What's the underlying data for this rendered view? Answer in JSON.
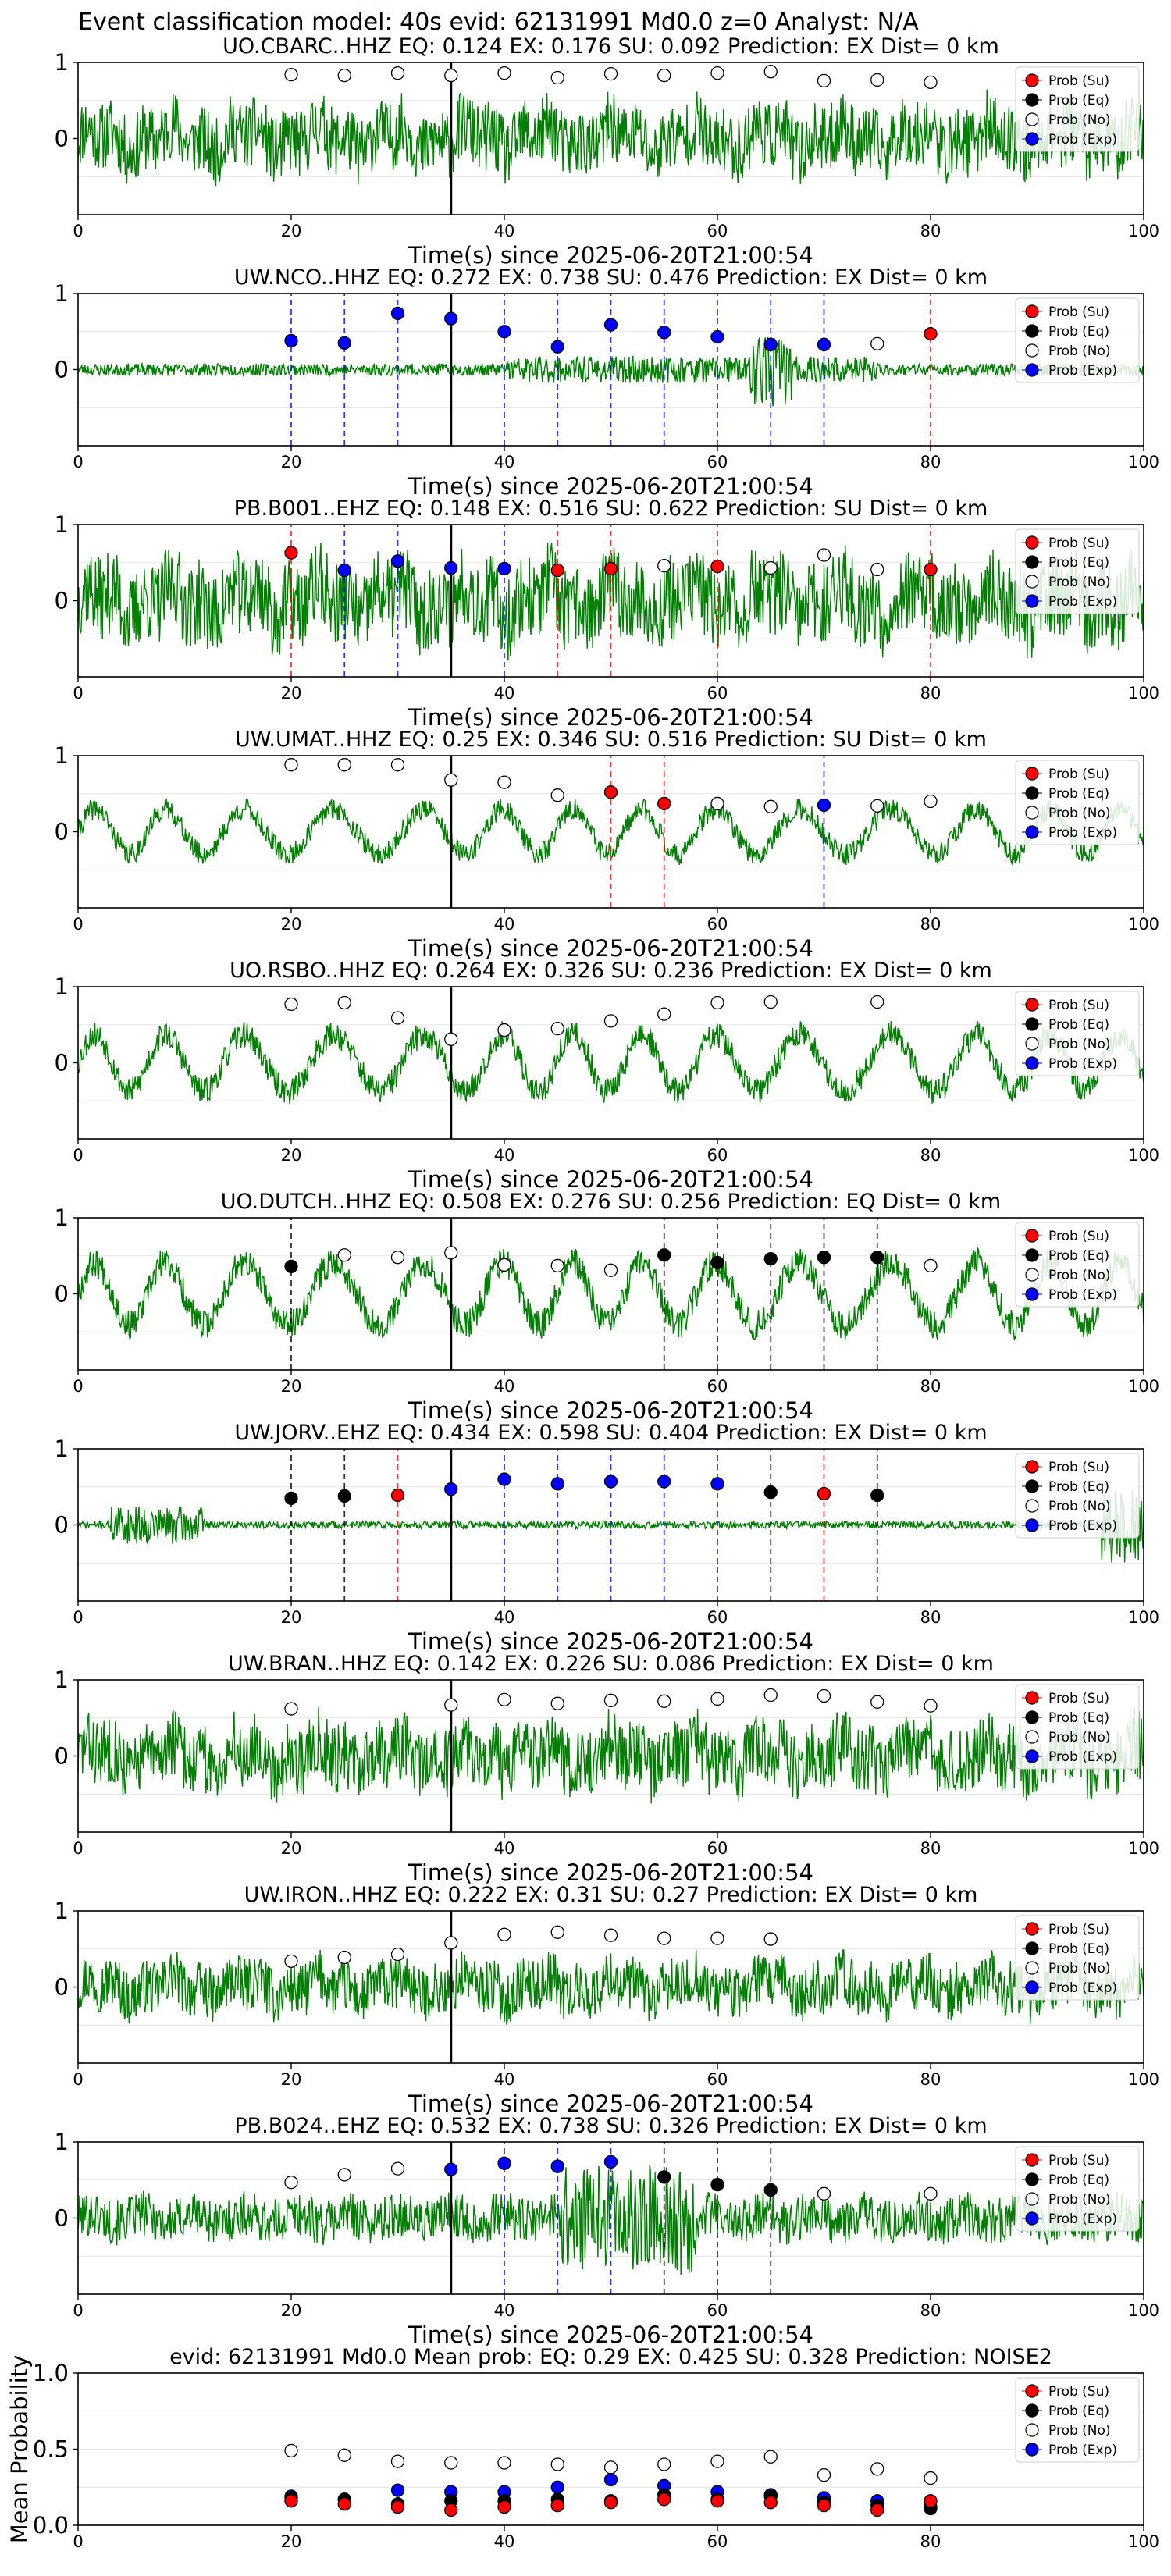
{
  "figure": {
    "suptitle": "Event classification model: 40s evid: 62131991 Md0.0 z=0 Analyst: N/A",
    "xlabel": "Time(s) since 2025-06-20T21:00:54",
    "legend_labels": [
      "Prob (Su)",
      "Prob (Eq)",
      "Prob (No)",
      "Prob (Exp)"
    ],
    "colors": {
      "trace": "#008000",
      "su": "#ff0000",
      "eq": "#000000",
      "no": "#ffffff",
      "exp": "#0000ff",
      "vline": "#000000",
      "grid": "#e6e6e6"
    }
  },
  "chart_data": [
    {
      "type": "line",
      "title": "UO.CBARC..HHZ   EQ: 0.124   EX: 0.176   SU: 0.092    Prediction: EX    Dist= 0 km",
      "xlim": [
        0,
        100
      ],
      "ylim": [
        -1,
        1
      ],
      "yticks": [
        0,
        1
      ],
      "xticks": [
        0,
        20,
        40,
        60,
        80,
        100
      ],
      "xlabel": "Time(s) since 2025-06-20T21:00:54",
      "trace": {
        "style": "noisy",
        "amp": 0.45,
        "seed": 11
      },
      "vertical_line_x": 35,
      "markers": [
        {
          "x": 20,
          "y": 0.84,
          "cls": "no"
        },
        {
          "x": 25,
          "y": 0.83,
          "cls": "no"
        },
        {
          "x": 30,
          "y": 0.86,
          "cls": "no"
        },
        {
          "x": 35,
          "y": 0.83,
          "cls": "no"
        },
        {
          "x": 40,
          "y": 0.86,
          "cls": "no"
        },
        {
          "x": 45,
          "y": 0.8,
          "cls": "no"
        },
        {
          "x": 50,
          "y": 0.85,
          "cls": "no"
        },
        {
          "x": 55,
          "y": 0.83,
          "cls": "no"
        },
        {
          "x": 60,
          "y": 0.86,
          "cls": "no"
        },
        {
          "x": 65,
          "y": 0.88,
          "cls": "no"
        },
        {
          "x": 70,
          "y": 0.76,
          "cls": "no"
        },
        {
          "x": 75,
          "y": 0.77,
          "cls": "no"
        },
        {
          "x": 80,
          "y": 0.74,
          "cls": "no"
        }
      ]
    },
    {
      "type": "line",
      "title": "UW.NCO..HHZ   EQ: 0.272   EX: 0.738   SU: 0.476    Prediction: EX    Dist= 0 km",
      "xlim": [
        0,
        100
      ],
      "ylim": [
        -1,
        1
      ],
      "yticks": [
        0,
        1
      ],
      "xticks": [
        0,
        20,
        40,
        60,
        80,
        100
      ],
      "xlabel": "Time(s) since 2025-06-20T21:00:54",
      "trace": {
        "style": "quiet-burst",
        "amp": 0.08,
        "seed": 23
      },
      "vertical_line_x": 35,
      "markers": [
        {
          "x": 20,
          "y": 0.38,
          "cls": "exp"
        },
        {
          "x": 25,
          "y": 0.35,
          "cls": "exp"
        },
        {
          "x": 30,
          "y": 0.74,
          "cls": "exp"
        },
        {
          "x": 35,
          "y": 0.67,
          "cls": "exp"
        },
        {
          "x": 40,
          "y": 0.5,
          "cls": "exp"
        },
        {
          "x": 45,
          "y": 0.3,
          "cls": "exp"
        },
        {
          "x": 50,
          "y": 0.59,
          "cls": "exp"
        },
        {
          "x": 55,
          "y": 0.49,
          "cls": "exp"
        },
        {
          "x": 60,
          "y": 0.43,
          "cls": "exp"
        },
        {
          "x": 65,
          "y": 0.33,
          "cls": "exp"
        },
        {
          "x": 70,
          "y": 0.33,
          "cls": "exp"
        },
        {
          "x": 75,
          "y": 0.34,
          "cls": "no"
        },
        {
          "x": 80,
          "y": 0.47,
          "cls": "su"
        }
      ]
    },
    {
      "type": "line",
      "title": "PB.B001..EHZ   EQ: 0.148   EX: 0.516   SU: 0.622    Prediction: SU    Dist= 0 km",
      "xlim": [
        0,
        100
      ],
      "ylim": [
        -1,
        1
      ],
      "yticks": [
        0,
        1
      ],
      "xticks": [
        0,
        20,
        40,
        60,
        80,
        100
      ],
      "xlabel": "Time(s) since 2025-06-20T21:00:54",
      "trace": {
        "style": "noisy",
        "amp": 0.55,
        "seed": 37
      },
      "vertical_line_x": 35,
      "markers": [
        {
          "x": 20,
          "y": 0.63,
          "cls": "su"
        },
        {
          "x": 25,
          "y": 0.4,
          "cls": "exp"
        },
        {
          "x": 30,
          "y": 0.52,
          "cls": "exp"
        },
        {
          "x": 35,
          "y": 0.43,
          "cls": "exp"
        },
        {
          "x": 40,
          "y": 0.42,
          "cls": "exp"
        },
        {
          "x": 45,
          "y": 0.4,
          "cls": "su"
        },
        {
          "x": 50,
          "y": 0.42,
          "cls": "su"
        },
        {
          "x": 55,
          "y": 0.46,
          "cls": "no"
        },
        {
          "x": 60,
          "y": 0.45,
          "cls": "su"
        },
        {
          "x": 65,
          "y": 0.43,
          "cls": "no"
        },
        {
          "x": 70,
          "y": 0.6,
          "cls": "no"
        },
        {
          "x": 75,
          "y": 0.41,
          "cls": "no"
        },
        {
          "x": 80,
          "y": 0.41,
          "cls": "su"
        }
      ]
    },
    {
      "type": "line",
      "title": "UW.UMAT..HHZ   EQ: 0.25   EX: 0.346   SU: 0.516    Prediction: SU    Dist= 0 km",
      "xlim": [
        0,
        100
      ],
      "ylim": [
        -1,
        1
      ],
      "yticks": [
        0,
        1
      ],
      "xticks": [
        0,
        20,
        40,
        60,
        80,
        100
      ],
      "xlabel": "Time(s) since 2025-06-20T21:00:54",
      "trace": {
        "style": "wavy",
        "amp": 0.4,
        "seed": 41
      },
      "vertical_line_x": 35,
      "markers": [
        {
          "x": 20,
          "y": 0.88,
          "cls": "no"
        },
        {
          "x": 25,
          "y": 0.88,
          "cls": "no"
        },
        {
          "x": 30,
          "y": 0.88,
          "cls": "no"
        },
        {
          "x": 35,
          "y": 0.68,
          "cls": "no"
        },
        {
          "x": 40,
          "y": 0.65,
          "cls": "no"
        },
        {
          "x": 45,
          "y": 0.48,
          "cls": "no"
        },
        {
          "x": 50,
          "y": 0.52,
          "cls": "su"
        },
        {
          "x": 55,
          "y": 0.37,
          "cls": "su"
        },
        {
          "x": 60,
          "y": 0.37,
          "cls": "no"
        },
        {
          "x": 65,
          "y": 0.33,
          "cls": "no"
        },
        {
          "x": 70,
          "y": 0.35,
          "cls": "exp"
        },
        {
          "x": 75,
          "y": 0.34,
          "cls": "no"
        },
        {
          "x": 80,
          "y": 0.4,
          "cls": "no"
        }
      ]
    },
    {
      "type": "line",
      "title": "UO.RSBO..HHZ   EQ: 0.264   EX: 0.326   SU: 0.236    Prediction: EX    Dist= 0 km",
      "xlim": [
        0,
        100
      ],
      "ylim": [
        -1,
        1
      ],
      "yticks": [
        0,
        1
      ],
      "xticks": [
        0,
        20,
        40,
        60,
        80,
        100
      ],
      "xlabel": "Time(s) since 2025-06-20T21:00:54",
      "trace": {
        "style": "wavy",
        "amp": 0.5,
        "seed": 53
      },
      "vertical_line_x": 35,
      "markers": [
        {
          "x": 20,
          "y": 0.77,
          "cls": "no"
        },
        {
          "x": 25,
          "y": 0.79,
          "cls": "no"
        },
        {
          "x": 30,
          "y": 0.59,
          "cls": "no"
        },
        {
          "x": 35,
          "y": 0.31,
          "cls": "no"
        },
        {
          "x": 40,
          "y": 0.43,
          "cls": "no"
        },
        {
          "x": 45,
          "y": 0.45,
          "cls": "no"
        },
        {
          "x": 50,
          "y": 0.55,
          "cls": "no"
        },
        {
          "x": 55,
          "y": 0.64,
          "cls": "no"
        },
        {
          "x": 60,
          "y": 0.79,
          "cls": "no"
        },
        {
          "x": 65,
          "y": 0.8,
          "cls": "no"
        },
        {
          "x": 75,
          "y": 0.8,
          "cls": "no"
        }
      ]
    },
    {
      "type": "line",
      "title": "UO.DUTCH..HHZ   EQ: 0.508   EX: 0.276   SU: 0.256    Prediction: EQ    Dist= 0 km",
      "xlim": [
        0,
        100
      ],
      "ylim": [
        -1,
        1
      ],
      "yticks": [
        0,
        1
      ],
      "xticks": [
        0,
        20,
        40,
        60,
        80,
        100
      ],
      "xlabel": "Time(s) since 2025-06-20T21:00:54",
      "trace": {
        "style": "wavy",
        "amp": 0.55,
        "seed": 67
      },
      "vertical_line_x": 35,
      "markers": [
        {
          "x": 20,
          "y": 0.36,
          "cls": "eq"
        },
        {
          "x": 25,
          "y": 0.51,
          "cls": "no"
        },
        {
          "x": 30,
          "y": 0.48,
          "cls": "no"
        },
        {
          "x": 35,
          "y": 0.54,
          "cls": "no"
        },
        {
          "x": 40,
          "y": 0.38,
          "cls": "no"
        },
        {
          "x": 45,
          "y": 0.37,
          "cls": "no"
        },
        {
          "x": 50,
          "y": 0.31,
          "cls": "no"
        },
        {
          "x": 55,
          "y": 0.51,
          "cls": "eq"
        },
        {
          "x": 60,
          "y": 0.41,
          "cls": "eq"
        },
        {
          "x": 65,
          "y": 0.46,
          "cls": "eq"
        },
        {
          "x": 70,
          "y": 0.48,
          "cls": "eq"
        },
        {
          "x": 75,
          "y": 0.48,
          "cls": "eq"
        },
        {
          "x": 80,
          "y": 0.37,
          "cls": "no"
        }
      ]
    },
    {
      "type": "line",
      "title": "UW.JORV..EHZ   EQ: 0.434   EX: 0.598   SU: 0.404    Prediction: EX    Dist= 0 km",
      "xlim": [
        0,
        100
      ],
      "ylim": [
        -1,
        1
      ],
      "yticks": [
        0,
        1
      ],
      "xticks": [
        0,
        20,
        40,
        60,
        80,
        100
      ],
      "xlabel": "Time(s) since 2025-06-20T21:00:54",
      "trace": {
        "style": "quiet-early",
        "amp": 0.05,
        "seed": 71
      },
      "vertical_line_x": 35,
      "markers": [
        {
          "x": 20,
          "y": 0.35,
          "cls": "eq"
        },
        {
          "x": 25,
          "y": 0.38,
          "cls": "eq"
        },
        {
          "x": 30,
          "y": 0.39,
          "cls": "su"
        },
        {
          "x": 35,
          "y": 0.47,
          "cls": "exp"
        },
        {
          "x": 40,
          "y": 0.6,
          "cls": "exp"
        },
        {
          "x": 45,
          "y": 0.54,
          "cls": "exp"
        },
        {
          "x": 50,
          "y": 0.57,
          "cls": "exp"
        },
        {
          "x": 55,
          "y": 0.57,
          "cls": "exp"
        },
        {
          "x": 60,
          "y": 0.54,
          "cls": "exp"
        },
        {
          "x": 65,
          "y": 0.43,
          "cls": "eq"
        },
        {
          "x": 70,
          "y": 0.41,
          "cls": "su"
        },
        {
          "x": 75,
          "y": 0.39,
          "cls": "eq"
        }
      ]
    },
    {
      "type": "line",
      "title": "UW.BRAN..HHZ   EQ: 0.142   EX: 0.226   SU: 0.086    Prediction: EX    Dist= 0 km",
      "xlim": [
        0,
        100
      ],
      "ylim": [
        -1,
        1
      ],
      "yticks": [
        0,
        1
      ],
      "xticks": [
        0,
        20,
        40,
        60,
        80,
        100
      ],
      "xlabel": "Time(s) since 2025-06-20T21:00:54",
      "trace": {
        "style": "noisy",
        "amp": 0.45,
        "seed": 83
      },
      "vertical_line_x": 35,
      "markers": [
        {
          "x": 20,
          "y": 0.62,
          "cls": "no"
        },
        {
          "x": 35,
          "y": 0.67,
          "cls": "no"
        },
        {
          "x": 40,
          "y": 0.74,
          "cls": "no"
        },
        {
          "x": 45,
          "y": 0.69,
          "cls": "no"
        },
        {
          "x": 50,
          "y": 0.73,
          "cls": "no"
        },
        {
          "x": 55,
          "y": 0.72,
          "cls": "no"
        },
        {
          "x": 60,
          "y": 0.75,
          "cls": "no"
        },
        {
          "x": 65,
          "y": 0.8,
          "cls": "no"
        },
        {
          "x": 70,
          "y": 0.79,
          "cls": "no"
        },
        {
          "x": 75,
          "y": 0.71,
          "cls": "no"
        },
        {
          "x": 80,
          "y": 0.66,
          "cls": "no"
        }
      ]
    },
    {
      "type": "line",
      "title": "UW.IRON..HHZ   EQ: 0.222   EX: 0.31   SU: 0.27    Prediction: EX    Dist= 0 km",
      "xlim": [
        0,
        100
      ],
      "ylim": [
        -1,
        1
      ],
      "yticks": [
        0,
        1
      ],
      "xticks": [
        0,
        20,
        40,
        60,
        80,
        100
      ],
      "xlabel": "Time(s) since 2025-06-20T21:00:54",
      "trace": {
        "style": "noisy",
        "amp": 0.35,
        "seed": 97
      },
      "vertical_line_x": 35,
      "markers": [
        {
          "x": 20,
          "y": 0.34,
          "cls": "no"
        },
        {
          "x": 25,
          "y": 0.39,
          "cls": "no"
        },
        {
          "x": 30,
          "y": 0.43,
          "cls": "no"
        },
        {
          "x": 35,
          "y": 0.58,
          "cls": "no"
        },
        {
          "x": 40,
          "y": 0.69,
          "cls": "no"
        },
        {
          "x": 45,
          "y": 0.72,
          "cls": "no"
        },
        {
          "x": 50,
          "y": 0.68,
          "cls": "no"
        },
        {
          "x": 55,
          "y": 0.64,
          "cls": "no"
        },
        {
          "x": 60,
          "y": 0.64,
          "cls": "no"
        },
        {
          "x": 65,
          "y": 0.63,
          "cls": "no"
        }
      ]
    },
    {
      "type": "line",
      "title": "PB.B024..EHZ   EQ: 0.532   EX: 0.738   SU: 0.326    Prediction: EX    Dist= 0 km",
      "xlim": [
        0,
        100
      ],
      "ylim": [
        -1,
        1
      ],
      "yticks": [
        0,
        1
      ],
      "xticks": [
        0,
        20,
        40,
        60,
        80,
        100
      ],
      "xlabel": "Time(s) since 2025-06-20T21:00:54",
      "trace": {
        "style": "noisy-burst",
        "amp": 0.3,
        "seed": 101
      },
      "vertical_line_x": 35,
      "markers": [
        {
          "x": 20,
          "y": 0.47,
          "cls": "no"
        },
        {
          "x": 25,
          "y": 0.57,
          "cls": "no"
        },
        {
          "x": 30,
          "y": 0.65,
          "cls": "no"
        },
        {
          "x": 35,
          "y": 0.64,
          "cls": "exp"
        },
        {
          "x": 40,
          "y": 0.72,
          "cls": "exp"
        },
        {
          "x": 45,
          "y": 0.68,
          "cls": "exp"
        },
        {
          "x": 50,
          "y": 0.74,
          "cls": "exp"
        },
        {
          "x": 55,
          "y": 0.54,
          "cls": "eq"
        },
        {
          "x": 60,
          "y": 0.44,
          "cls": "eq"
        },
        {
          "x": 65,
          "y": 0.37,
          "cls": "eq"
        },
        {
          "x": 70,
          "y": 0.32,
          "cls": "no"
        },
        {
          "x": 80,
          "y": 0.32,
          "cls": "no"
        }
      ]
    },
    {
      "type": "scatter",
      "title": "evid: 62131991  Md0.0   Mean prob:   EQ: 0.29  EX: 0.425  SU: 0.328   Prediction: NOISE2",
      "xlim": [
        0,
        100
      ],
      "ylim": [
        0,
        1
      ],
      "yticks": [
        0,
        0.5,
        1
      ],
      "ytick_labels": [
        "0.0",
        "0.5",
        "1.0"
      ],
      "xticks": [
        0,
        20,
        40,
        60,
        80,
        100
      ],
      "ylabel": "Mean Probability",
      "x": [
        20,
        25,
        30,
        35,
        40,
        45,
        50,
        55,
        60,
        65,
        70,
        75,
        80
      ],
      "series": [
        {
          "key": "no",
          "values": [
            0.49,
            0.46,
            0.42,
            0.41,
            0.41,
            0.4,
            0.38,
            0.4,
            0.42,
            0.45,
            0.33,
            0.37,
            0.31
          ]
        },
        {
          "key": "exp",
          "values": [
            0.19,
            0.17,
            0.23,
            0.22,
            0.22,
            0.25,
            0.3,
            0.26,
            0.22,
            0.2,
            0.18,
            0.16,
            0.12
          ]
        },
        {
          "key": "eq",
          "values": [
            0.18,
            0.17,
            0.14,
            0.16,
            0.16,
            0.17,
            0.16,
            0.2,
            0.17,
            0.19,
            0.15,
            0.13,
            0.11
          ]
        },
        {
          "key": "su",
          "values": [
            0.16,
            0.14,
            0.12,
            0.1,
            0.12,
            0.13,
            0.15,
            0.17,
            0.16,
            0.15,
            0.13,
            0.1,
            0.16
          ]
        }
      ]
    }
  ]
}
